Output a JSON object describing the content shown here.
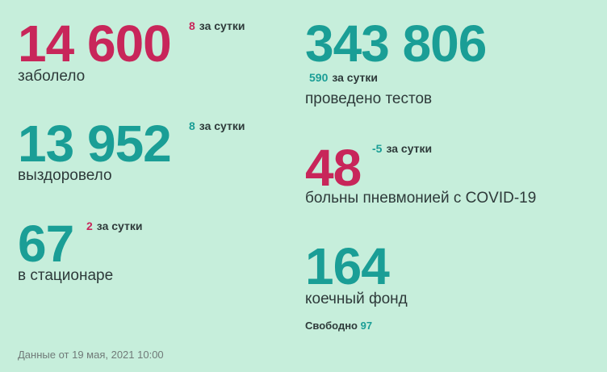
{
  "stats": [
    {
      "value": "14 600",
      "change": "8",
      "change_label": "за сутки",
      "label": "заболело"
    },
    {
      "value": "13 952",
      "change": "8",
      "change_label": "за сутки",
      "label": "выздоровело"
    },
    {
      "value": "67",
      "change": "2",
      "change_label": "за сутки",
      "label": "в стационаре"
    },
    {
      "value": "343 806",
      "change": "590",
      "change_label": "за сутки",
      "label": "проведено тестов"
    },
    {
      "value": "48",
      "change": "-5",
      "change_label": "за сутки",
      "label": "больны пневмонией с COVID-19"
    }
  ],
  "beds": {
    "value": "164",
    "label": "коечный фонд",
    "free_label": "Свободно",
    "free_value": "97"
  },
  "footer": "Данные от 19 мая, 2021 10:00"
}
